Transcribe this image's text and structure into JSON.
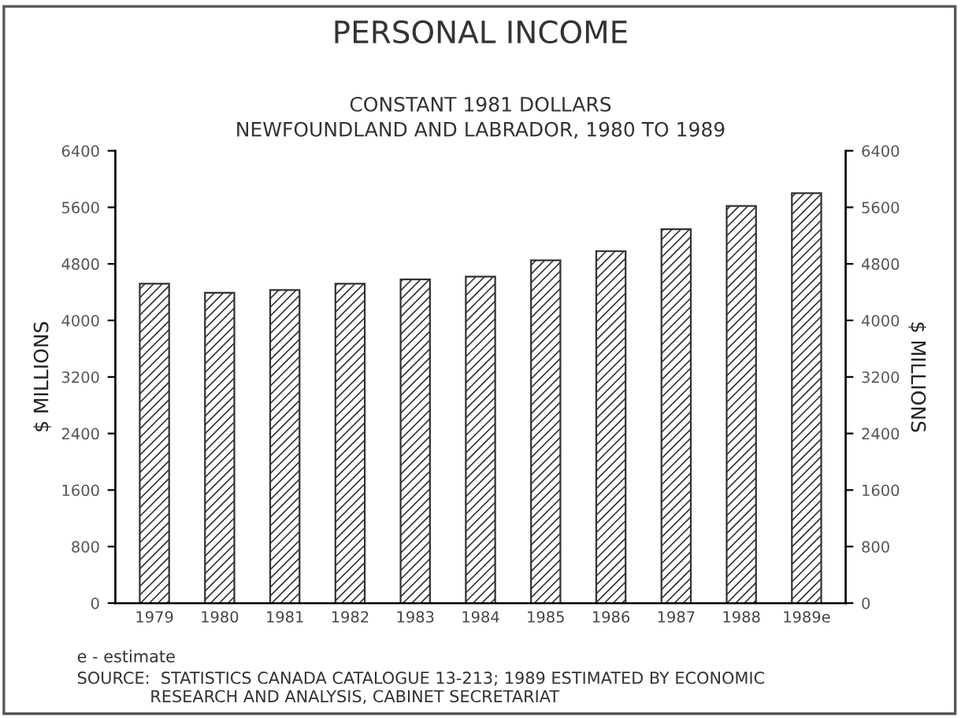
{
  "chart_data": {
    "type": "bar",
    "title": "PERSONAL INCOME",
    "subtitle": "CONSTANT 1981 DOLLARS\nNEWFOUNDLAND AND LABRADOR, 1980 TO 1989",
    "categories": [
      "1979",
      "1980",
      "1981",
      "1982",
      "1983",
      "1984",
      "1985",
      "1986",
      "1987",
      "1988",
      "1989e"
    ],
    "values": [
      4520,
      4390,
      4430,
      4520,
      4580,
      4620,
      4850,
      4980,
      5290,
      5620,
      5800
    ],
    "color": "#333333",
    "ylabel": "$ MILLIONS",
    "y2label": "$ MILLIONS",
    "ylim": [
      0,
      6400
    ],
    "yticks": [
      0,
      800,
      1600,
      2400,
      3200,
      4000,
      4800,
      5600,
      6400
    ],
    "y2lim": [
      0,
      6400
    ],
    "y2ticks": [
      0,
      800,
      1600,
      2400,
      3200,
      4000,
      4800,
      5600,
      6400
    ],
    "grid": false,
    "legend": false,
    "annotations": [
      "e - estimate",
      "SOURCE:  STATISTICS CANADA CATALOGUE 13-213; 1989 ESTIMATED BY ECONOMIC\n              RESEARCH AND ANALYSIS, CABINET SECRETARIAT"
    ]
  }
}
